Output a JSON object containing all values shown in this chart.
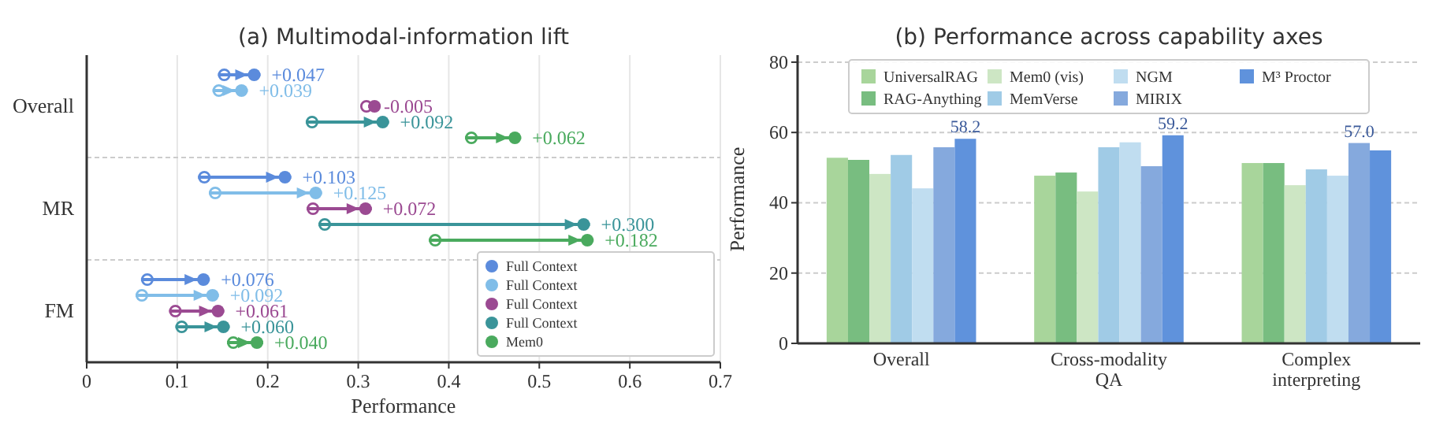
{
  "chart_data": [
    {
      "type": "bar",
      "orientation": "horizontal",
      "title": "(a) Multimodal-information lift",
      "xlabel": "Performance",
      "categories": [
        "Overall",
        "MR",
        "FM"
      ],
      "xlim": [
        0,
        0.7
      ],
      "xticks": [
        0,
        {
          "value": 0.1,
          "label": "0.1"
        },
        {
          "value": 0.2,
          "label": "0.2"
        },
        {
          "value": 0.3,
          "label": "0.3"
        },
        {
          "value": 0.4,
          "label": "0.4"
        },
        {
          "value": 0.5,
          "label": "0.5"
        },
        {
          "value": 0.6,
          "label": "0.6"
        },
        {
          "value": 0.7,
          "label": "0.7"
        }
      ],
      "grid": "x",
      "legend": "bottom right",
      "marker": "circle",
      "series": [
        {
          "name": "Full Context",
          "color": "#5b8bdc",
          "base": [
            0.145,
            0.123,
            0.06
          ],
          "values": [
            0.047,
            0.103,
            0.076
          ],
          "value_labels": [
            "+0.047",
            "+0.103",
            "+0.076"
          ]
        },
        {
          "name": "Full Context",
          "color": "#80bde8",
          "base": [
            0.139,
            0.135,
            0.054
          ],
          "values": [
            0.039,
            0.125,
            0.092
          ],
          "value_labels": [
            "+0.039",
            "+0.125",
            "+0.092"
          ]
        },
        {
          "name": "Full Context",
          "color": "#9b4a92",
          "base": [
            0.316,
            0.243,
            0.091
          ],
          "values": [
            -0.005,
            0.072,
            0.061
          ],
          "value_labels": [
            "-0.005",
            "+0.072",
            "+0.061"
          ]
        },
        {
          "name": "Full Context",
          "color": "#3a9499",
          "base": [
            0.242,
            0.256,
            0.098
          ],
          "values": [
            0.092,
            0.3,
            0.06
          ],
          "value_labels": [
            "+0.092",
            "+0.300",
            "+0.060"
          ]
        },
        {
          "name": "Mem0",
          "color": "#4aaa5e",
          "base": [
            0.418,
            0.378,
            0.155
          ],
          "values": [
            0.062,
            0.182,
            0.04
          ],
          "value_labels": [
            "+0.062",
            "+0.182",
            "+0.040"
          ]
        }
      ]
    },
    {
      "type": "bar",
      "title": "(b) Performance across capability axes",
      "ylabel": "Performance",
      "categories": [
        "Overall",
        "Cross-modality\nQA",
        "Complex\ninterpreting"
      ],
      "ylim": [
        0,
        82
      ],
      "yticks": [
        0,
        20,
        40,
        60,
        80
      ],
      "grid": "y",
      "legend": "top",
      "series": [
        {
          "name": "UniversalRAG",
          "color": "#a8d59b",
          "values": [
            52.8,
            47.7,
            51.3
          ]
        },
        {
          "name": "RAG-Anything",
          "color": "#78bd80",
          "values": [
            52.2,
            48.6,
            51.3
          ]
        },
        {
          "name": "Mem0 (vis)",
          "color": "#cde6c4",
          "values": [
            48.2,
            43.2,
            45.0
          ]
        },
        {
          "name": "MemVerse",
          "color": "#a0cbe6",
          "values": [
            53.6,
            55.8,
            49.5
          ]
        },
        {
          "name": "NGM",
          "color": "#c0ddf0",
          "values": [
            44.1,
            57.2,
            47.7
          ]
        },
        {
          "name": "MIRIX",
          "color": "#85a9dd",
          "values": [
            55.8,
            50.4,
            57.0
          ],
          "value_labels": [
            null,
            null,
            "57.0"
          ]
        },
        {
          "name": "M³ Proctor",
          "color": "#5f92dc",
          "values": [
            58.2,
            59.2,
            54.9
          ],
          "value_labels": [
            "58.2",
            "59.2",
            null
          ]
        }
      ]
    }
  ]
}
